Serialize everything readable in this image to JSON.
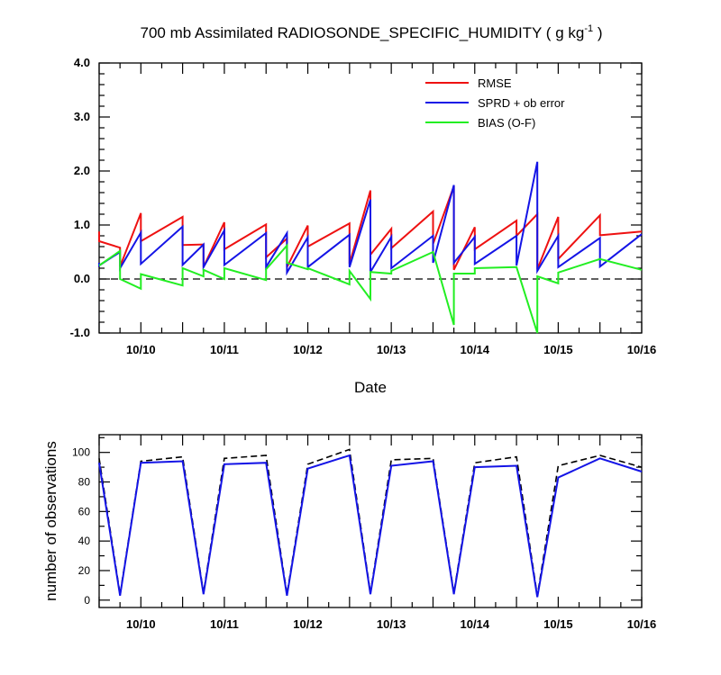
{
  "chart_data": [
    {
      "type": "line",
      "title": "700 mb Assimilated RADIOSONDE_SPECIFIC_HUMIDITY ( g kg",
      "title_superscript": "-1",
      "title_suffix": " )",
      "xlabel": "Date",
      "ylabel": "",
      "xlim": [
        9.5,
        16.0
      ],
      "ylim": [
        -1.0,
        4.0
      ],
      "yticks": [
        "-1.0",
        "0.0",
        "1.0",
        "2.0",
        "3.0",
        "4.0"
      ],
      "xticks": [
        {
          "value": 10,
          "label": "10/10"
        },
        {
          "value": 11,
          "label": "10/11"
        },
        {
          "value": 12,
          "label": "10/12"
        },
        {
          "value": 13,
          "label": "10/13"
        },
        {
          "value": 14,
          "label": "10/14"
        },
        {
          "value": 15,
          "label": "10/15"
        },
        {
          "value": 16,
          "label": "10/16"
        }
      ],
      "reference_line": {
        "y": 0.0,
        "style": "dashed"
      },
      "legend_position": "top-right",
      "series": [
        {
          "name": "RMSE",
          "color": "#ee1111",
          "x": [
            9.5,
            9.5,
            9.75,
            9.75,
            10.0,
            10.0,
            10.5,
            10.5,
            10.75,
            10.75,
            11.0,
            11.0,
            11.5,
            11.5,
            11.75,
            11.75,
            12.0,
            12.0,
            12.5,
            12.5,
            12.75,
            12.75,
            13.0,
            13.0,
            13.5,
            13.5,
            13.75,
            13.75,
            14.0,
            14.0,
            14.5,
            14.5,
            14.75,
            14.75,
            15.0,
            15.0,
            15.5,
            15.5,
            16.0
          ],
          "y": [
            0.88,
            0.7,
            0.58,
            0.23,
            1.22,
            0.7,
            1.15,
            0.63,
            0.64,
            0.22,
            1.05,
            0.55,
            1.01,
            0.4,
            0.75,
            0.22,
            0.99,
            0.6,
            1.03,
            0.28,
            1.64,
            0.45,
            0.93,
            0.57,
            1.25,
            0.65,
            1.72,
            0.17,
            0.96,
            0.55,
            1.08,
            0.8,
            1.2,
            0.18,
            1.15,
            0.37,
            1.18,
            0.81,
            0.88
          ]
        },
        {
          "name": "SPRD + ob error",
          "color": "#1414e6",
          "x": [
            9.5,
            9.5,
            9.75,
            9.75,
            10.0,
            10.0,
            10.5,
            10.5,
            10.75,
            10.75,
            11.0,
            11.0,
            11.5,
            11.5,
            11.75,
            11.75,
            12.0,
            12.0,
            12.5,
            12.5,
            12.75,
            12.75,
            13.0,
            13.0,
            13.5,
            13.5,
            13.75,
            13.75,
            14.0,
            14.0,
            14.5,
            14.5,
            14.75,
            14.75,
            15.0,
            15.0,
            15.5,
            15.5,
            16.0
          ],
          "y": [
            0.3,
            0.25,
            0.5,
            0.2,
            0.86,
            0.28,
            0.97,
            0.26,
            0.64,
            0.22,
            0.9,
            0.26,
            0.85,
            0.22,
            0.85,
            0.12,
            0.77,
            0.22,
            0.82,
            0.22,
            1.47,
            0.13,
            0.78,
            0.2,
            0.8,
            0.3,
            1.74,
            0.3,
            0.78,
            0.28,
            0.8,
            0.25,
            2.17,
            0.15,
            0.8,
            0.22,
            0.76,
            0.23,
            0.83
          ]
        },
        {
          "name": "BIAS (O-F)",
          "color": "#22ee22",
          "x": [
            9.5,
            9.75,
            9.75,
            10.0,
            10.0,
            10.5,
            10.5,
            10.75,
            10.75,
            11.0,
            11.0,
            11.5,
            11.5,
            11.75,
            11.75,
            12.0,
            12.0,
            12.5,
            12.5,
            12.75,
            12.75,
            13.0,
            13.0,
            13.5,
            13.75,
            13.75,
            14.0,
            14.0,
            14.5,
            14.75,
            14.75,
            15.0,
            15.0,
            15.5,
            16.0
          ],
          "y": [
            0.25,
            0.52,
            0.0,
            -0.18,
            0.09,
            -0.12,
            0.2,
            0.05,
            0.17,
            0.0,
            0.2,
            -0.02,
            0.18,
            0.62,
            0.3,
            0.18,
            0.2,
            -0.1,
            0.15,
            -0.37,
            0.13,
            0.1,
            0.15,
            0.5,
            -0.85,
            0.1,
            0.1,
            0.2,
            0.22,
            -1.0,
            0.05,
            -0.08,
            0.12,
            0.37,
            0.17
          ]
        }
      ]
    },
    {
      "type": "line",
      "title": "",
      "xlabel": "",
      "ylabel": "number of observations",
      "xlim": [
        9.5,
        16.0
      ],
      "ylim": [
        -5,
        112
      ],
      "yticks": [
        "0",
        "20",
        "40",
        "60",
        "80",
        "100"
      ],
      "xticks": [
        {
          "value": 10,
          "label": "10/10"
        },
        {
          "value": 11,
          "label": "10/11"
        },
        {
          "value": 12,
          "label": "10/12"
        },
        {
          "value": 13,
          "label": "10/13"
        },
        {
          "value": 14,
          "label": "10/14"
        },
        {
          "value": 15,
          "label": "10/15"
        },
        {
          "value": 16,
          "label": "10/16"
        }
      ],
      "series": [
        {
          "color": "#000000",
          "style": "dashed",
          "x": [
            9.5,
            9.75,
            10.0,
            10.5,
            10.75,
            11.0,
            11.5,
            11.75,
            12.0,
            12.5,
            12.75,
            13.0,
            13.5,
            13.75,
            14.0,
            14.5,
            14.75,
            15.0,
            15.5,
            16.0
          ],
          "y": [
            96,
            4,
            94,
            97,
            5,
            96,
            98,
            4,
            92,
            102,
            5,
            95,
            96,
            5,
            93,
            97,
            3,
            91,
            98,
            90
          ]
        },
        {
          "color": "#1414e6",
          "style": "solid",
          "x": [
            9.5,
            9.75,
            10.0,
            10.5,
            10.75,
            11.0,
            11.5,
            11.75,
            12.0,
            12.5,
            12.75,
            13.0,
            13.5,
            13.75,
            14.0,
            14.5,
            14.75,
            15.0,
            15.5,
            16.0
          ],
          "y": [
            93,
            3,
            93,
            94,
            4,
            92,
            93,
            3,
            89,
            98,
            4,
            91,
            94,
            4,
            90,
            91,
            2,
            83,
            96,
            87
          ]
        }
      ]
    }
  ]
}
